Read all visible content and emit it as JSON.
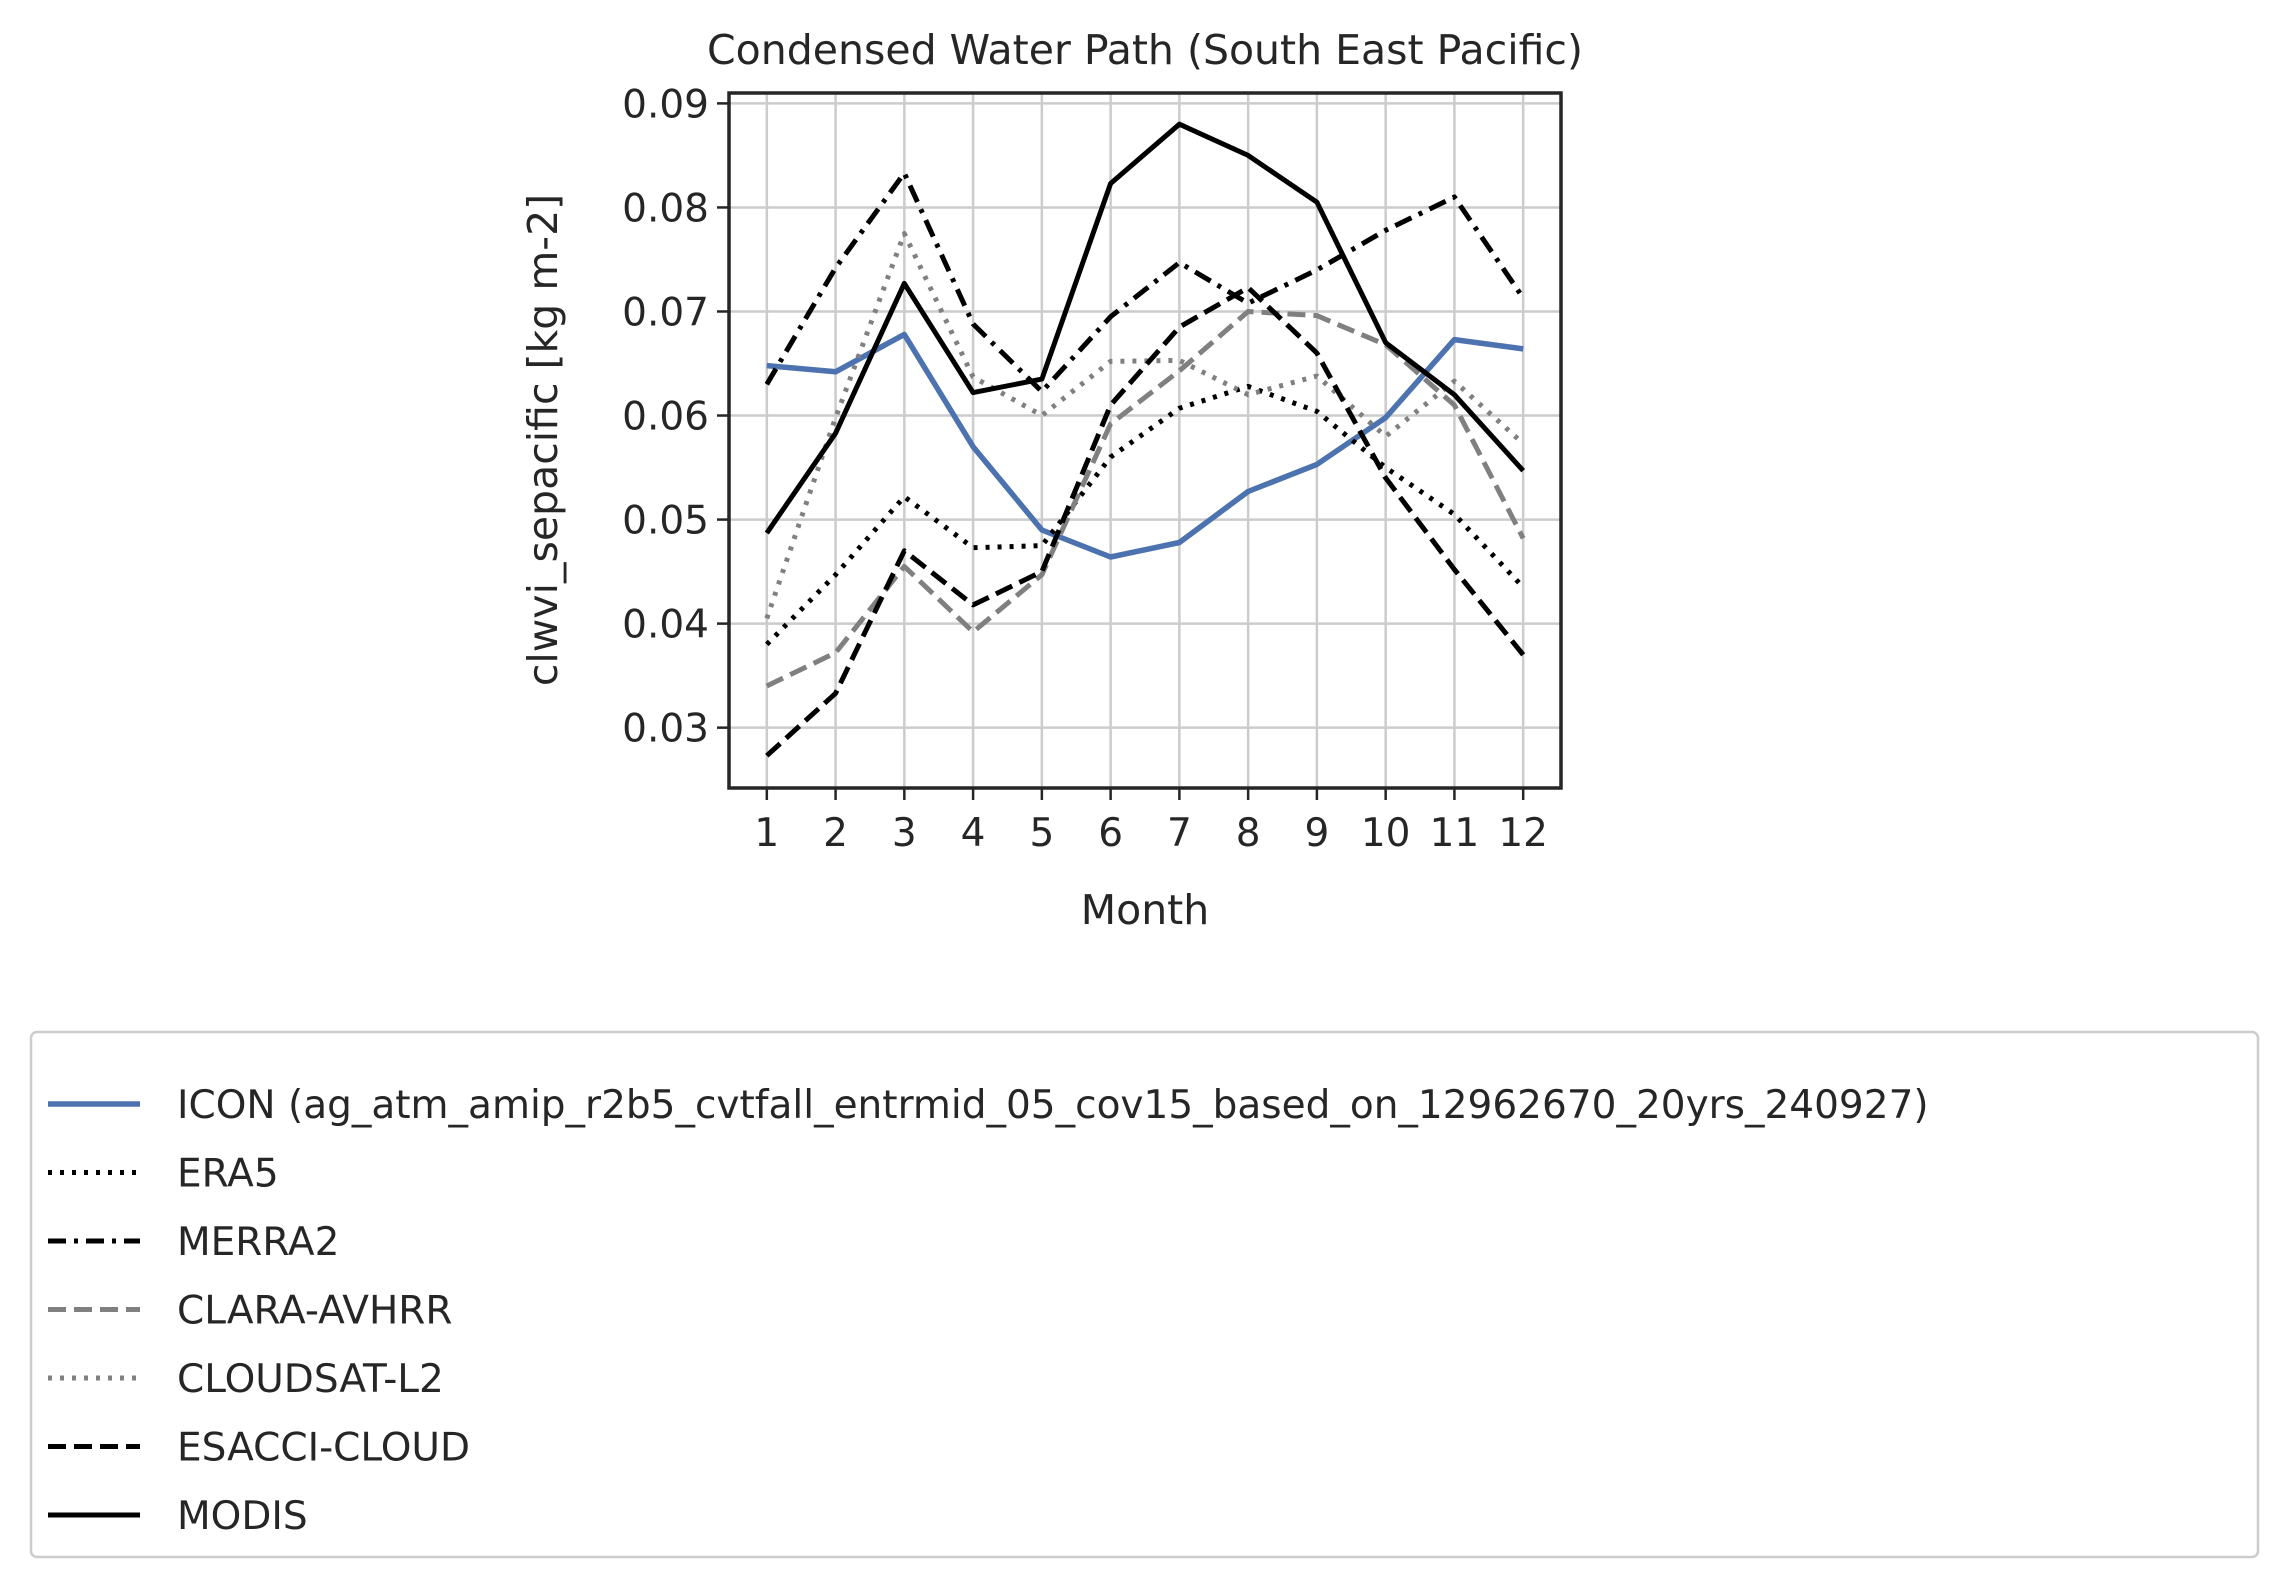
{
  "chart_data": {
    "type": "line",
    "title": "Condensed Water Path (South East Pacific)",
    "xlabel": "Month",
    "ylabel": "clwvi_sepacific [kg m-2]",
    "x": [
      1,
      2,
      3,
      4,
      5,
      6,
      7,
      8,
      9,
      10,
      11,
      12
    ],
    "xticks": [
      "1",
      "2",
      "3",
      "4",
      "5",
      "6",
      "7",
      "8",
      "9",
      "10",
      "11",
      "12"
    ],
    "xlim": [
      0.45,
      12.55
    ],
    "ylim": [
      0.0242,
      0.091
    ],
    "yticks": [
      0.03,
      0.04,
      0.05,
      0.06,
      0.07,
      0.08,
      0.09
    ],
    "ytick_labels": [
      "0.03",
      "0.04",
      "0.05",
      "0.06",
      "0.07",
      "0.08",
      "0.09"
    ],
    "grid": true,
    "legend_position": "below",
    "series": [
      {
        "name": "ICON (ag_atm_amip_r2b5_cvtfall_entrmid_05_cov15_based_on_12962670_20yrs_240927)",
        "color": "#4c72b0",
        "style": "solid",
        "width": 5.5,
        "values": [
          0.0648,
          0.0642,
          0.0678,
          0.057,
          0.049,
          0.0464,
          0.0478,
          0.0527,
          0.0553,
          0.0598,
          0.0673,
          0.0664
        ]
      },
      {
        "name": "ERA5",
        "color": "#000000",
        "style": "dotted",
        "width": 5,
        "values": [
          0.038,
          0.0447,
          0.0522,
          0.0473,
          0.0475,
          0.056,
          0.0607,
          0.0628,
          0.0604,
          0.055,
          0.0505,
          0.0435
        ]
      },
      {
        "name": "MERRA2",
        "color": "#000000",
        "style": "dashdot",
        "width": 5,
        "values": [
          0.063,
          0.0742,
          0.0833,
          0.0688,
          0.0623,
          0.0695,
          0.0747,
          0.0708,
          0.074,
          0.0778,
          0.081,
          0.0713
        ]
      },
      {
        "name": "CLARA-AVHRR",
        "color": "#808080",
        "style": "dashed",
        "width": 5,
        "values": [
          0.034,
          0.0372,
          0.0455,
          0.0392,
          0.0447,
          0.0592,
          0.0643,
          0.07,
          0.0696,
          0.0668,
          0.061,
          0.0482
        ]
      },
      {
        "name": "CLOUDSAT-L2",
        "color": "#808080",
        "style": "dotted",
        "width": 5,
        "values": [
          0.0405,
          0.0598,
          0.0775,
          0.0637,
          0.06,
          0.0652,
          0.0653,
          0.062,
          0.0638,
          0.058,
          0.0633,
          0.0573
        ]
      },
      {
        "name": "ESACCI-CLOUD",
        "color": "#000000",
        "style": "dashed",
        "width": 5,
        "values": [
          0.0273,
          0.0333,
          0.047,
          0.0418,
          0.045,
          0.061,
          0.0685,
          0.0723,
          0.066,
          0.054,
          0.0452,
          0.037
        ]
      },
      {
        "name": "MODIS",
        "color": "#000000",
        "style": "solid",
        "width": 5,
        "values": [
          0.0487,
          0.0583,
          0.0727,
          0.0622,
          0.0635,
          0.0823,
          0.088,
          0.085,
          0.0805,
          0.067,
          0.062,
          0.0547
        ]
      }
    ]
  }
}
